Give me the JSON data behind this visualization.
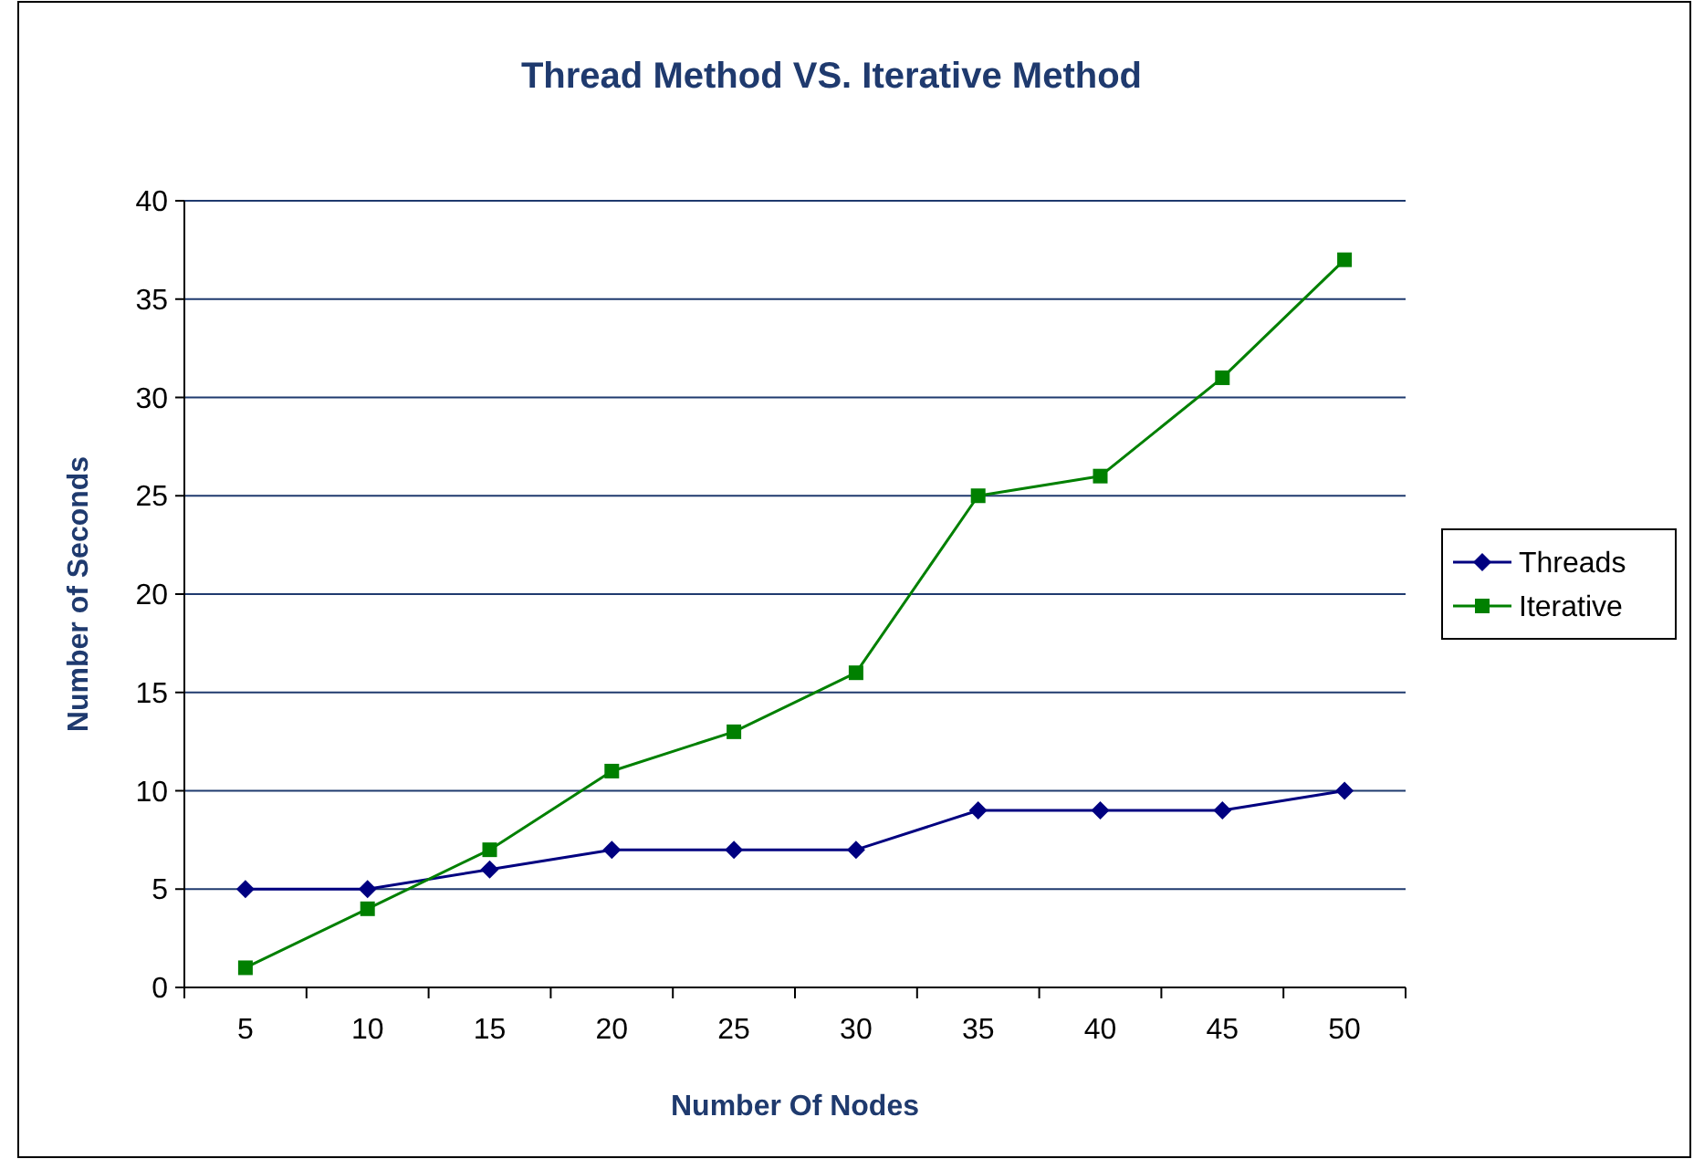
{
  "chart_data": {
    "type": "line",
    "title": "Thread Method VS. Iterative Method",
    "xlabel": "Number Of Nodes",
    "ylabel": "Number of Seconds",
    "categories": [
      "5",
      "10",
      "15",
      "20",
      "25",
      "30",
      "35",
      "40",
      "45",
      "50"
    ],
    "series": [
      {
        "name": "Threads",
        "color": "#000080",
        "marker": "diamond",
        "values": [
          5,
          5,
          6,
          7,
          7,
          7,
          9,
          9,
          9,
          10
        ]
      },
      {
        "name": "Iterative",
        "color": "#008000",
        "marker": "square",
        "values": [
          1,
          4,
          7,
          11,
          13,
          16,
          25,
          26,
          31,
          37
        ]
      }
    ],
    "ylim": [
      0,
      40
    ],
    "yticks": [
      0,
      5,
      10,
      15,
      20,
      25,
      30,
      35,
      40
    ],
    "grid": "y",
    "legend": "right",
    "line_style": "solid"
  }
}
